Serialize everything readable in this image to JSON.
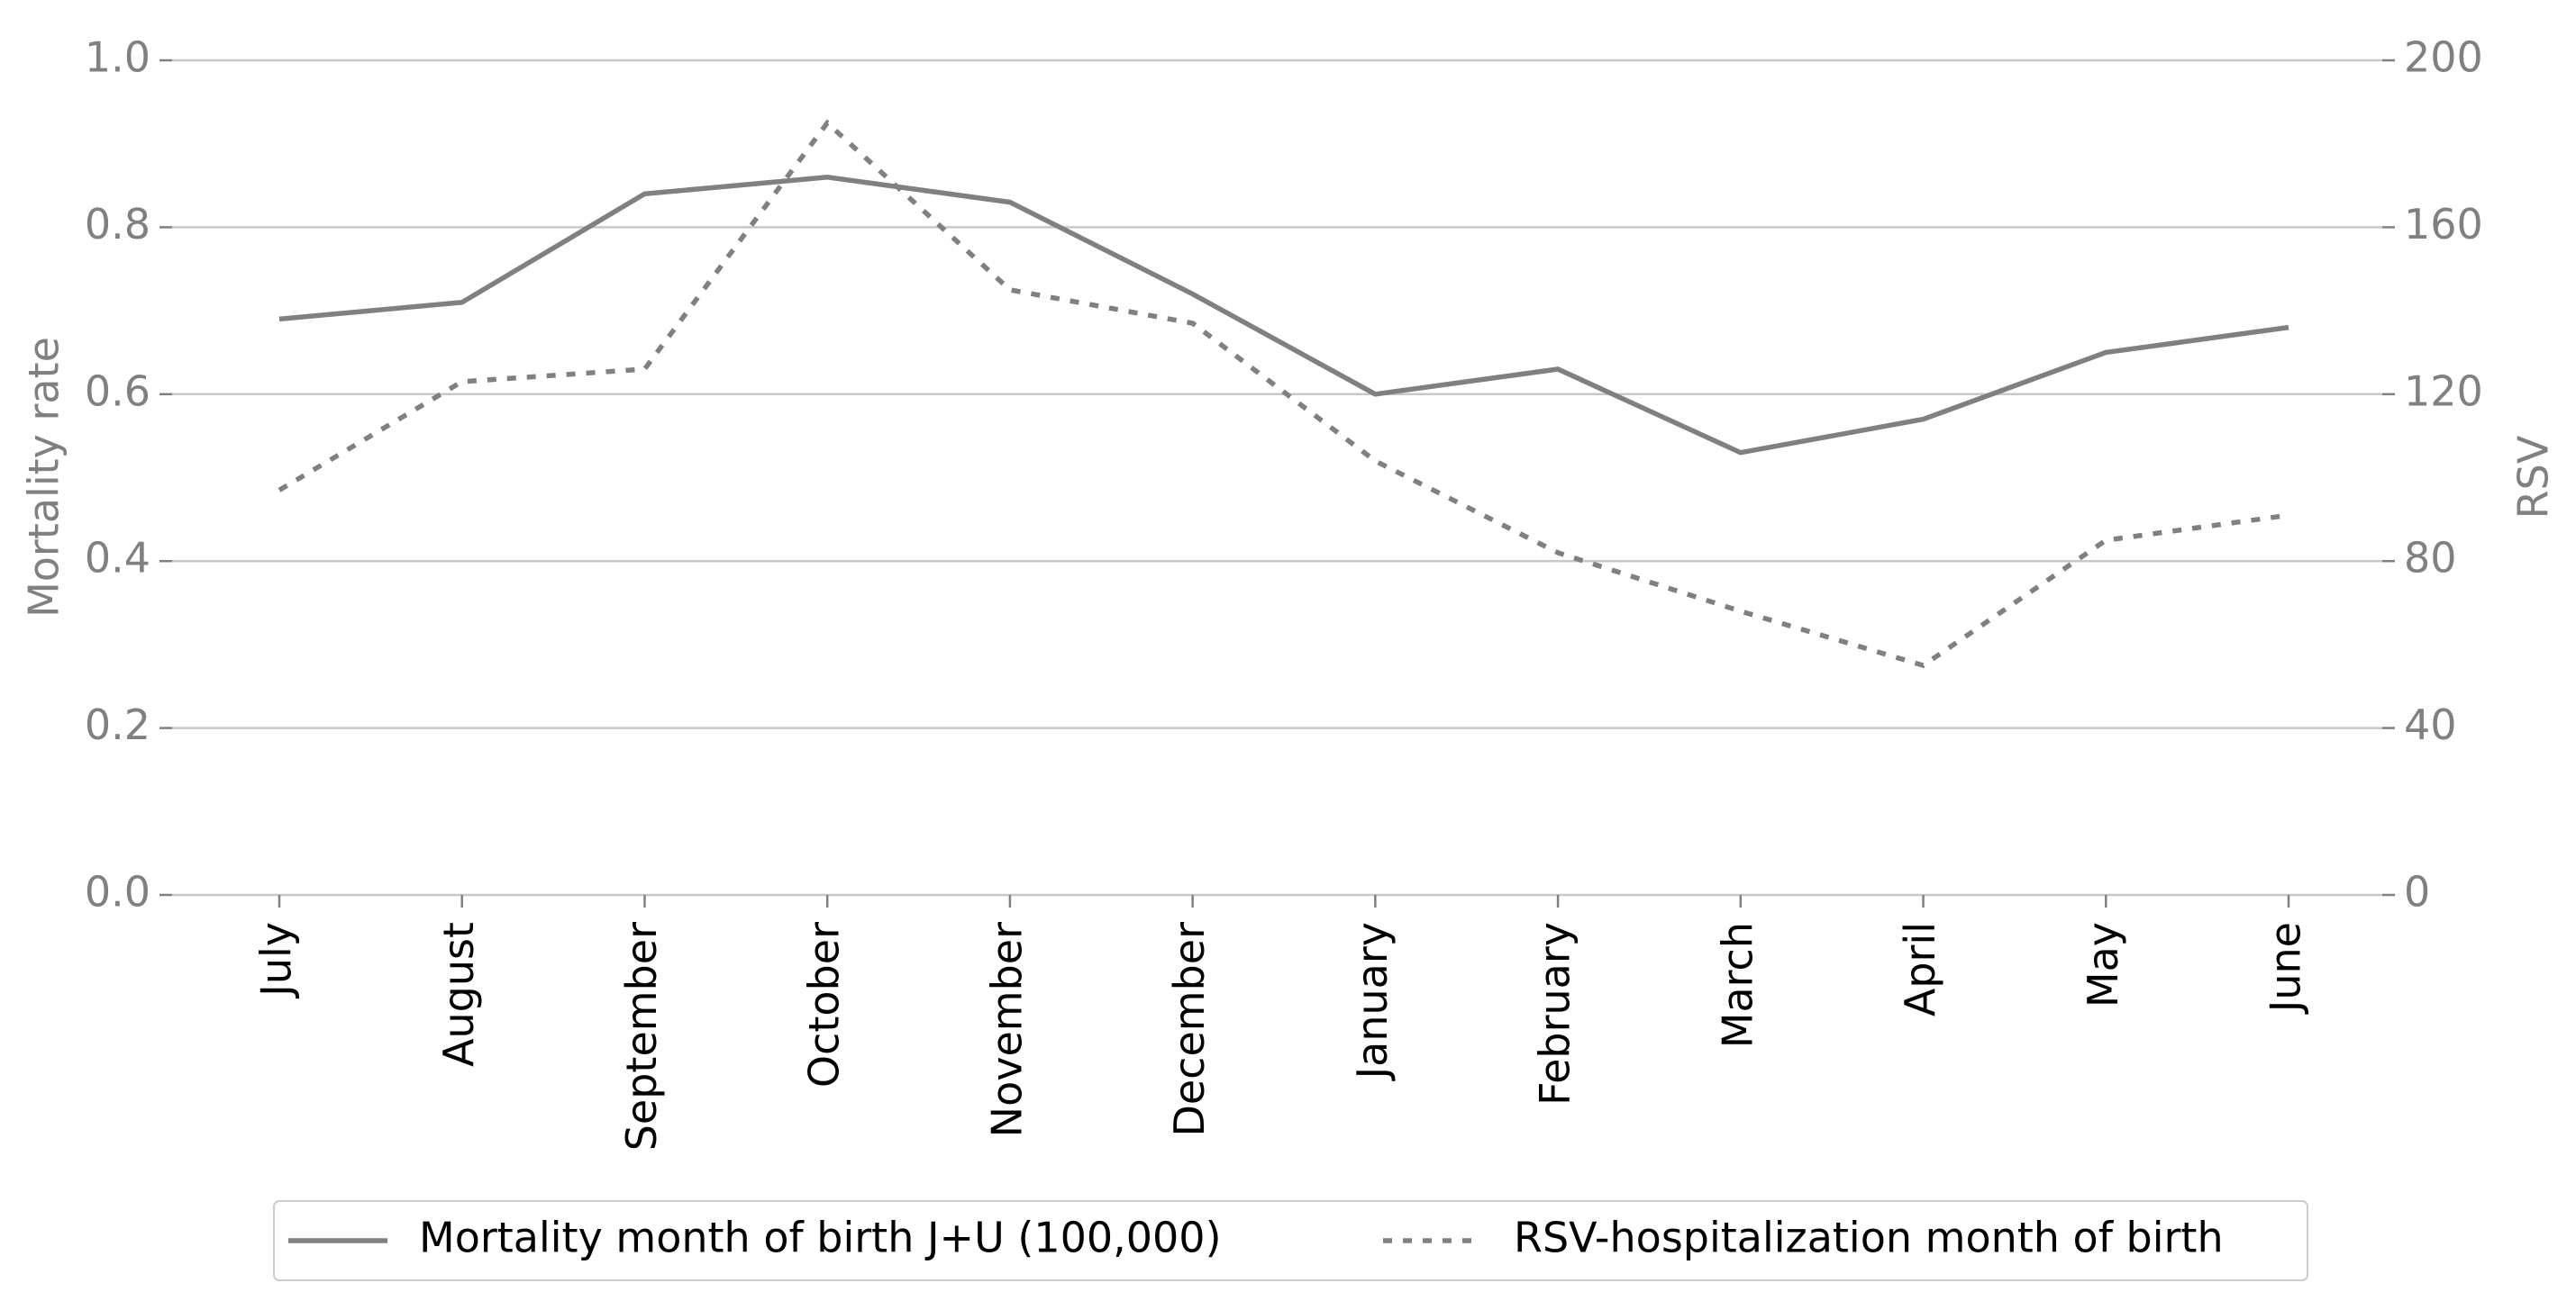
{
  "chart_data": {
    "type": "line",
    "categories": [
      "July",
      "August",
      "September",
      "October",
      "November",
      "December",
      "January",
      "February",
      "March",
      "April",
      "May",
      "June"
    ],
    "series": [
      {
        "name": "Mortality month of birth J+U (100,000)",
        "color": "#808080",
        "dash": false,
        "axis": "y",
        "values": [
          0.69,
          0.71,
          0.84,
          0.86,
          0.83,
          0.72,
          0.6,
          0.63,
          0.53,
          0.57,
          0.65,
          0.68
        ]
      },
      {
        "name": "RSV-hospitalization month of birth",
        "color": "#808080",
        "dash": true,
        "axis": "y2",
        "values": [
          97,
          123,
          126,
          185,
          145,
          137,
          104,
          82,
          68,
          55,
          85,
          91
        ]
      }
    ],
    "ylabel": "Mortality rate",
    "y2label": "RSV",
    "ylim": [
      0,
      1
    ],
    "yticks": [
      {
        "value": 0,
        "label": "0.0"
      },
      0.2,
      0.4,
      0.6,
      0.8,
      {
        "value": 1,
        "label": "1.0"
      }
    ],
    "y2lim": [
      0,
      200
    ],
    "y2ticks": [
      0,
      40,
      80,
      120,
      160,
      200
    ],
    "grid": true,
    "legend": "bottom"
  }
}
